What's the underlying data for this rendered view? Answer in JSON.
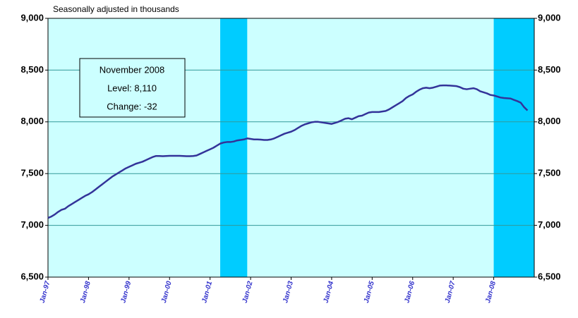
{
  "chart_data": {
    "type": "line",
    "subtitle": "Seasonally adjusted in thousands",
    "annotation": [
      "November 2008",
      "Level: 8,110",
      "Change: -32"
    ],
    "categories": [
      "Jan-97",
      null,
      null,
      null,
      null,
      null,
      null,
      null,
      null,
      null,
      null,
      null,
      "Jan-98",
      null,
      null,
      null,
      null,
      null,
      null,
      null,
      null,
      null,
      null,
      null,
      "Jan-99",
      null,
      null,
      null,
      null,
      null,
      null,
      null,
      null,
      null,
      null,
      null,
      "Jan-00",
      null,
      null,
      null,
      null,
      null,
      null,
      null,
      null,
      null,
      null,
      null,
      "Jan-01",
      null,
      null,
      null,
      null,
      null,
      null,
      null,
      null,
      null,
      null,
      null,
      "Jan-02",
      null,
      null,
      null,
      null,
      null,
      null,
      null,
      null,
      null,
      null,
      null,
      "Jan-03",
      null,
      null,
      null,
      null,
      null,
      null,
      null,
      null,
      null,
      null,
      null,
      "Jan-04",
      null,
      null,
      null,
      null,
      null,
      null,
      null,
      null,
      null,
      null,
      null,
      "Jan-05",
      null,
      null,
      null,
      null,
      null,
      null,
      null,
      null,
      null,
      null,
      null,
      "Jan-06",
      null,
      null,
      null,
      null,
      null,
      null,
      null,
      null,
      null,
      null,
      null,
      "Jan-07",
      null,
      null,
      null,
      null,
      null,
      null,
      null,
      null,
      null,
      null,
      null,
      "Jan-08",
      null,
      null,
      null,
      null,
      null,
      null,
      null,
      null,
      null,
      null,
      null
    ],
    "series": [
      {
        "color": "#333399",
        "values": [
          7072,
          7085,
          7105,
          7130,
          7150,
          7160,
          7185,
          7205,
          7225,
          7245,
          7265,
          7285,
          7300,
          7320,
          7345,
          7370,
          7395,
          7420,
          7445,
          7470,
          7490,
          7510,
          7530,
          7550,
          7565,
          7580,
          7595,
          7605,
          7615,
          7630,
          7645,
          7660,
          7670,
          7670,
          7668,
          7670,
          7672,
          7672,
          7672,
          7672,
          7670,
          7668,
          7668,
          7670,
          7675,
          7690,
          7705,
          7720,
          7735,
          7750,
          7770,
          7790,
          7800,
          7805,
          7805,
          7810,
          7820,
          7825,
          7830,
          7840,
          7835,
          7830,
          7830,
          7828,
          7825,
          7825,
          7830,
          7840,
          7855,
          7870,
          7885,
          7895,
          7905,
          7920,
          7940,
          7960,
          7975,
          7985,
          7995,
          8000,
          8000,
          7995,
          7990,
          7985,
          7980,
          7990,
          8000,
          8015,
          8030,
          8035,
          8025,
          8040,
          8055,
          8060,
          8075,
          8090,
          8095,
          8095,
          8095,
          8100,
          8105,
          8120,
          8140,
          8160,
          8180,
          8200,
          8230,
          8250,
          8265,
          8290,
          8310,
          8325,
          8330,
          8325,
          8330,
          8340,
          8350,
          8352,
          8352,
          8350,
          8348,
          8345,
          8335,
          8320,
          8315,
          8320,
          8325,
          8315,
          8295,
          8285,
          8275,
          8260,
          8255,
          8245,
          8235,
          8230,
          8228,
          8225,
          8212,
          8200,
          8185,
          8142,
          8110,
          null
        ]
      }
    ],
    "shaded": [
      [
        51,
        59
      ],
      [
        132,
        144
      ]
    ],
    "shade_color": "#00ccff",
    "plot_color": "#ccffff",
    "grid_color": "#339999",
    "ylim": [
      6500,
      9000
    ],
    "yticks": [
      {
        "value": 6500,
        "label": "6,500"
      },
      {
        "value": 7000,
        "label": "7,000"
      },
      {
        "value": 7500,
        "label": "7,500"
      },
      {
        "value": 8000,
        "label": "8,000"
      },
      {
        "value": 8500,
        "label": "8,500"
      },
      {
        "value": 9000,
        "label": "9,000"
      }
    ],
    "y2lim": [
      6500,
      9000
    ],
    "y2ticks": [
      {
        "value": 6500,
        "label": "6,500"
      },
      {
        "value": 7000,
        "label": "7,000"
      },
      {
        "value": 7500,
        "label": "7,500"
      },
      {
        "value": 8000,
        "label": "8,000"
      },
      {
        "value": 8500,
        "label": "8,500"
      },
      {
        "value": 9000,
        "label": "9,000"
      }
    ],
    "grid": true
  }
}
